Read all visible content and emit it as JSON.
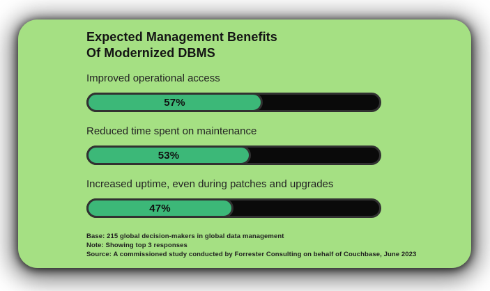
{
  "chart_data": {
    "type": "bar",
    "orientation": "horizontal",
    "title_line1": "Expected Management Benefits",
    "title_line2": "Of Modernized DBMS",
    "categories": [
      "Improved operational access",
      "Reduced time spent on maintenance",
      "Increased uptime, even during patches and upgrades"
    ],
    "values": [
      57,
      53,
      47
    ],
    "value_labels": [
      "57%",
      "53%",
      "47%"
    ],
    "xlim": [
      0,
      100
    ],
    "legend": "none",
    "grid": "off",
    "colors": {
      "card_background": "#a5e083",
      "bar_fill": "#3cb878",
      "bar_track": "#0a0a0a",
      "bar_border": "#313131",
      "text": "#141414"
    }
  },
  "footnotes": {
    "base": "Base: 215 global decision-makers in global data management",
    "note": "Note: Showing top 3 responses",
    "source": "Source: A commissioned study conducted by Forrester Consulting on behalf of Couchbase, June 2023"
  }
}
